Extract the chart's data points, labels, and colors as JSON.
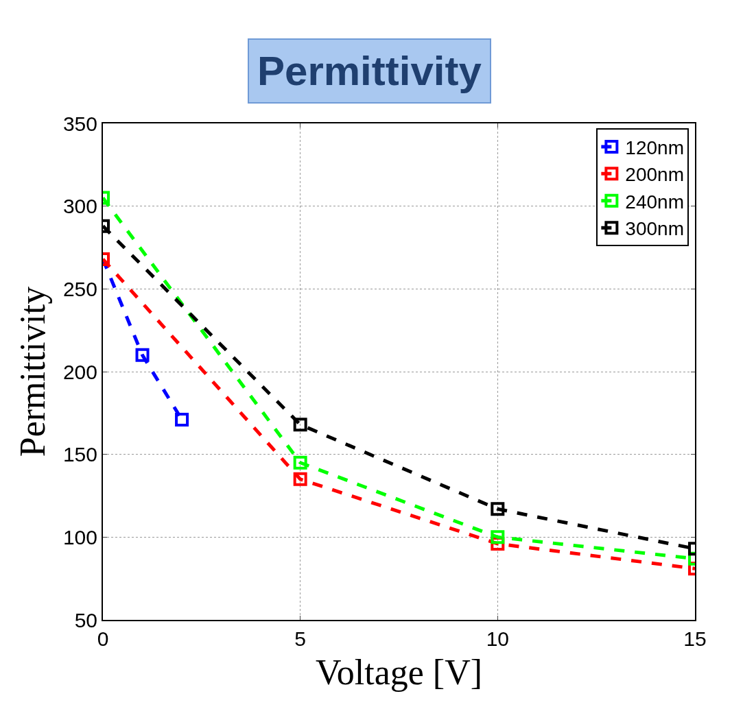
{
  "chart_data": {
    "type": "line",
    "title": "Permittivity",
    "xlabel": "Voltage [V]",
    "ylabel": "Permittivity",
    "xlim": [
      0,
      15
    ],
    "xticks": [
      0,
      5,
      10,
      15
    ],
    "ylim": [
      50,
      350
    ],
    "yticks": [
      50,
      100,
      150,
      200,
      250,
      300,
      350
    ],
    "grid": true,
    "legend": "top right",
    "marker": "square",
    "line_style": "dashed",
    "series": [
      {
        "name": "120nm",
        "color": "#0000ff",
        "x": [
          0,
          1,
          2
        ],
        "values": [
          268,
          210,
          171
        ]
      },
      {
        "name": "200nm",
        "color": "#ff0000",
        "x": [
          0,
          5,
          10,
          15
        ],
        "values": [
          268,
          135,
          96,
          81
        ]
      },
      {
        "name": "240nm",
        "color": "#00ff00",
        "x": [
          0,
          5,
          10,
          15
        ],
        "values": [
          305,
          145,
          100,
          87
        ]
      },
      {
        "name": "300nm",
        "color": "#000000",
        "x": [
          0,
          5,
          10,
          15
        ],
        "values": [
          288,
          168,
          117,
          93
        ]
      }
    ]
  }
}
